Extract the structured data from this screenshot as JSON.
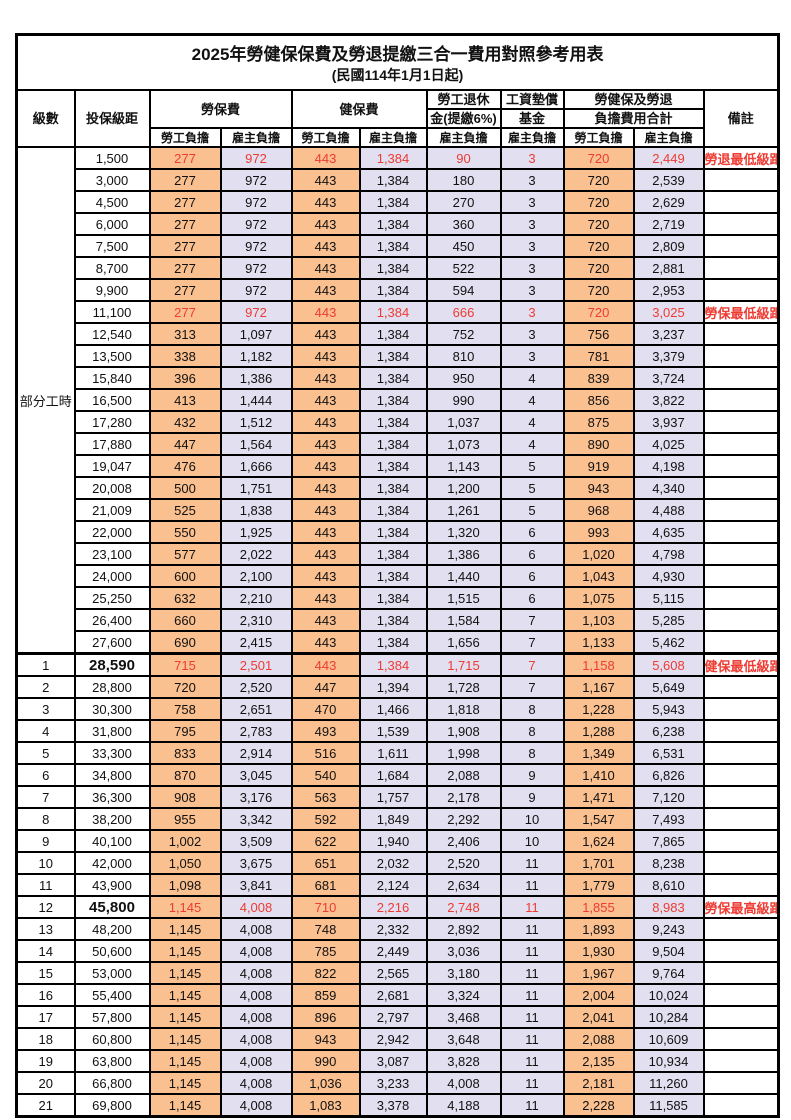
{
  "title": "2025年勞健保保費及勞退提繳三合一費用對照參考用表",
  "subtitle": "(民國114年1月1日起)",
  "colors": {
    "employee_col_bg": "#FAC08F",
    "employer_col_bg": "#E2DFF0",
    "highlight_text": "#ee3b33",
    "border": "#000000"
  },
  "header": {
    "level": "級數",
    "bracket": "投保級距",
    "labor_insurance": "勞保費",
    "health_insurance": "健保費",
    "pension_line1": "勞工退休",
    "pension_line2": "金(提繳6%)",
    "wage_fund_line1": "工資墊償",
    "wage_fund_line2": "基金",
    "total_line1": "勞健保及勞退",
    "total_line2": "負擔費用合計",
    "remark": "備註",
    "employee_share": "勞工負擔",
    "employer_share": "雇主負擔"
  },
  "part_time_label": "部分工時",
  "part_time_rowspan": 23,
  "red_rows": [
    0,
    7,
    23,
    34
  ],
  "bold_bracket_rows": [
    23,
    34
  ],
  "thick_border_row": 23,
  "rows": [
    [
      "",
      "1,500",
      "277",
      "972",
      "443",
      "1,384",
      "90",
      "3",
      "720",
      "2,449",
      "勞退最低級距"
    ],
    [
      "",
      "3,000",
      "277",
      "972",
      "443",
      "1,384",
      "180",
      "3",
      "720",
      "2,539",
      ""
    ],
    [
      "",
      "4,500",
      "277",
      "972",
      "443",
      "1,384",
      "270",
      "3",
      "720",
      "2,629",
      ""
    ],
    [
      "",
      "6,000",
      "277",
      "972",
      "443",
      "1,384",
      "360",
      "3",
      "720",
      "2,719",
      ""
    ],
    [
      "",
      "7,500",
      "277",
      "972",
      "443",
      "1,384",
      "450",
      "3",
      "720",
      "2,809",
      ""
    ],
    [
      "",
      "8,700",
      "277",
      "972",
      "443",
      "1,384",
      "522",
      "3",
      "720",
      "2,881",
      ""
    ],
    [
      "",
      "9,900",
      "277",
      "972",
      "443",
      "1,384",
      "594",
      "3",
      "720",
      "2,953",
      ""
    ],
    [
      "",
      "11,100",
      "277",
      "972",
      "443",
      "1,384",
      "666",
      "3",
      "720",
      "3,025",
      "勞保最低級距"
    ],
    [
      "",
      "12,540",
      "313",
      "1,097",
      "443",
      "1,384",
      "752",
      "3",
      "756",
      "3,237",
      ""
    ],
    [
      "",
      "13,500",
      "338",
      "1,182",
      "443",
      "1,384",
      "810",
      "3",
      "781",
      "3,379",
      ""
    ],
    [
      "",
      "15,840",
      "396",
      "1,386",
      "443",
      "1,384",
      "950",
      "4",
      "839",
      "3,724",
      ""
    ],
    [
      "",
      "16,500",
      "413",
      "1,444",
      "443",
      "1,384",
      "990",
      "4",
      "856",
      "3,822",
      ""
    ],
    [
      "",
      "17,280",
      "432",
      "1,512",
      "443",
      "1,384",
      "1,037",
      "4",
      "875",
      "3,937",
      ""
    ],
    [
      "",
      "17,880",
      "447",
      "1,564",
      "443",
      "1,384",
      "1,073",
      "4",
      "890",
      "4,025",
      ""
    ],
    [
      "",
      "19,047",
      "476",
      "1,666",
      "443",
      "1,384",
      "1,143",
      "5",
      "919",
      "4,198",
      ""
    ],
    [
      "",
      "20,008",
      "500",
      "1,751",
      "443",
      "1,384",
      "1,200",
      "5",
      "943",
      "4,340",
      ""
    ],
    [
      "",
      "21,009",
      "525",
      "1,838",
      "443",
      "1,384",
      "1,261",
      "5",
      "968",
      "4,488",
      ""
    ],
    [
      "",
      "22,000",
      "550",
      "1,925",
      "443",
      "1,384",
      "1,320",
      "6",
      "993",
      "4,635",
      ""
    ],
    [
      "",
      "23,100",
      "577",
      "2,022",
      "443",
      "1,384",
      "1,386",
      "6",
      "1,020",
      "4,798",
      ""
    ],
    [
      "",
      "24,000",
      "600",
      "2,100",
      "443",
      "1,384",
      "1,440",
      "6",
      "1,043",
      "4,930",
      ""
    ],
    [
      "",
      "25,250",
      "632",
      "2,210",
      "443",
      "1,384",
      "1,515",
      "6",
      "1,075",
      "5,115",
      ""
    ],
    [
      "",
      "26,400",
      "660",
      "2,310",
      "443",
      "1,384",
      "1,584",
      "7",
      "1,103",
      "5,285",
      ""
    ],
    [
      "",
      "27,600",
      "690",
      "2,415",
      "443",
      "1,384",
      "1,656",
      "7",
      "1,133",
      "5,462",
      ""
    ],
    [
      "1",
      "28,590",
      "715",
      "2,501",
      "443",
      "1,384",
      "1,715",
      "7",
      "1,158",
      "5,608",
      "健保最低級距"
    ],
    [
      "2",
      "28,800",
      "720",
      "2,520",
      "447",
      "1,394",
      "1,728",
      "7",
      "1,167",
      "5,649",
      ""
    ],
    [
      "3",
      "30,300",
      "758",
      "2,651",
      "470",
      "1,466",
      "1,818",
      "8",
      "1,228",
      "5,943",
      ""
    ],
    [
      "4",
      "31,800",
      "795",
      "2,783",
      "493",
      "1,539",
      "1,908",
      "8",
      "1,288",
      "6,238",
      ""
    ],
    [
      "5",
      "33,300",
      "833",
      "2,914",
      "516",
      "1,611",
      "1,998",
      "8",
      "1,349",
      "6,531",
      ""
    ],
    [
      "6",
      "34,800",
      "870",
      "3,045",
      "540",
      "1,684",
      "2,088",
      "9",
      "1,410",
      "6,826",
      ""
    ],
    [
      "7",
      "36,300",
      "908",
      "3,176",
      "563",
      "1,757",
      "2,178",
      "9",
      "1,471",
      "7,120",
      ""
    ],
    [
      "8",
      "38,200",
      "955",
      "3,342",
      "592",
      "1,849",
      "2,292",
      "10",
      "1,547",
      "7,493",
      ""
    ],
    [
      "9",
      "40,100",
      "1,002",
      "3,509",
      "622",
      "1,940",
      "2,406",
      "10",
      "1,624",
      "7,865",
      ""
    ],
    [
      "10",
      "42,000",
      "1,050",
      "3,675",
      "651",
      "2,032",
      "2,520",
      "11",
      "1,701",
      "8,238",
      ""
    ],
    [
      "11",
      "43,900",
      "1,098",
      "3,841",
      "681",
      "2,124",
      "2,634",
      "11",
      "1,779",
      "8,610",
      ""
    ],
    [
      "12",
      "45,800",
      "1,145",
      "4,008",
      "710",
      "2,216",
      "2,748",
      "11",
      "1,855",
      "8,983",
      "勞保最高級距"
    ],
    [
      "13",
      "48,200",
      "1,145",
      "4,008",
      "748",
      "2,332",
      "2,892",
      "11",
      "1,893",
      "9,243",
      ""
    ],
    [
      "14",
      "50,600",
      "1,145",
      "4,008",
      "785",
      "2,449",
      "3,036",
      "11",
      "1,930",
      "9,504",
      ""
    ],
    [
      "15",
      "53,000",
      "1,145",
      "4,008",
      "822",
      "2,565",
      "3,180",
      "11",
      "1,967",
      "9,764",
      ""
    ],
    [
      "16",
      "55,400",
      "1,145",
      "4,008",
      "859",
      "2,681",
      "3,324",
      "11",
      "2,004",
      "10,024",
      ""
    ],
    [
      "17",
      "57,800",
      "1,145",
      "4,008",
      "896",
      "2,797",
      "3,468",
      "11",
      "2,041",
      "10,284",
      ""
    ],
    [
      "18",
      "60,800",
      "1,145",
      "4,008",
      "943",
      "2,942",
      "3,648",
      "11",
      "2,088",
      "10,609",
      ""
    ],
    [
      "19",
      "63,800",
      "1,145",
      "4,008",
      "990",
      "3,087",
      "3,828",
      "11",
      "2,135",
      "10,934",
      ""
    ],
    [
      "20",
      "66,800",
      "1,145",
      "4,008",
      "1,036",
      "3,233",
      "4,008",
      "11",
      "2,181",
      "11,260",
      ""
    ],
    [
      "21",
      "69,800",
      "1,145",
      "4,008",
      "1,083",
      "3,378",
      "4,188",
      "11",
      "2,228",
      "11,585",
      ""
    ]
  ]
}
